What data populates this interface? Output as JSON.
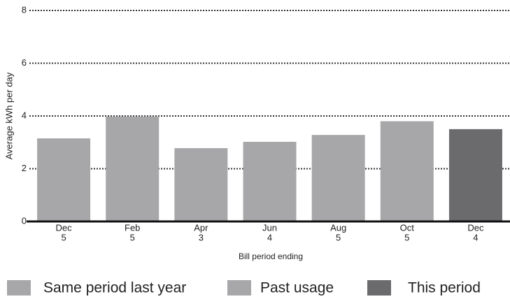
{
  "chart_data": {
    "type": "bar",
    "y_label": "Average kWh per day",
    "x_label": "Bill period ending",
    "categories": [
      [
        "Dec",
        "5"
      ],
      [
        "Feb",
        "5"
      ],
      [
        "Apr",
        "3"
      ],
      [
        "Jun",
        "4"
      ],
      [
        "Aug",
        "5"
      ],
      [
        "Oct",
        "5"
      ],
      [
        "Dec",
        "4"
      ]
    ],
    "series": [
      {
        "name": "Same period last year",
        "color": "#a7a7a9",
        "values": [
          3.15,
          null,
          null,
          null,
          null,
          null,
          null
        ]
      },
      {
        "name": "Past usage",
        "color": "#a7a7a9",
        "values": [
          null,
          3.98,
          2.78,
          3.02,
          3.28,
          3.8,
          null
        ]
      },
      {
        "name": "This period",
        "color": "#6b6b6e",
        "values": [
          null,
          null,
          null,
          null,
          null,
          null,
          3.5
        ]
      }
    ],
    "ylim": [
      0,
      8
    ],
    "yticks": [
      0,
      2,
      4,
      6,
      8
    ],
    "grid": true
  }
}
